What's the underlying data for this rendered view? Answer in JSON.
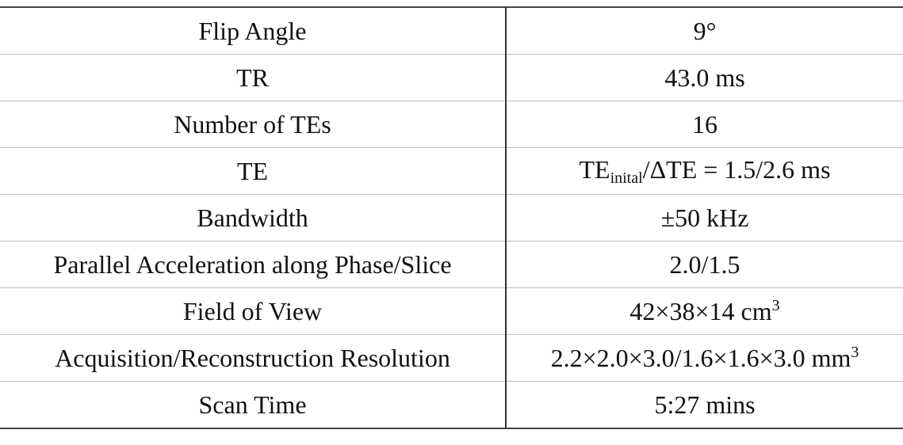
{
  "table": {
    "rows": [
      {
        "parameter": "Flip Angle",
        "value": "9°"
      },
      {
        "parameter": "TR",
        "value": "43.0 ms"
      },
      {
        "parameter": "Number of TEs",
        "value": "16"
      },
      {
        "parameter": "TE",
        "value": [
          {
            "text": "TE"
          },
          {
            "text": "inital",
            "script": "sub"
          },
          {
            "text": "/ΔTE = 1.5/2.6 ms"
          }
        ]
      },
      {
        "parameter": "Bandwidth",
        "value": "±50 kHz"
      },
      {
        "parameter": "Parallel Acceleration along Phase/Slice",
        "value": "2.0/1.5"
      },
      {
        "parameter": "Field of View",
        "value": [
          {
            "text": "42×38×14 cm"
          },
          {
            "text": "3",
            "script": "sup"
          }
        ]
      },
      {
        "parameter": "Acquisition/Reconstruction Resolution",
        "value": [
          {
            "text": "2.2×2.0×3.0/1.6×1.6×3.0 mm"
          },
          {
            "text": "3",
            "script": "sup"
          }
        ]
      },
      {
        "parameter": "Scan Time",
        "value": "5:27 mins"
      }
    ]
  }
}
